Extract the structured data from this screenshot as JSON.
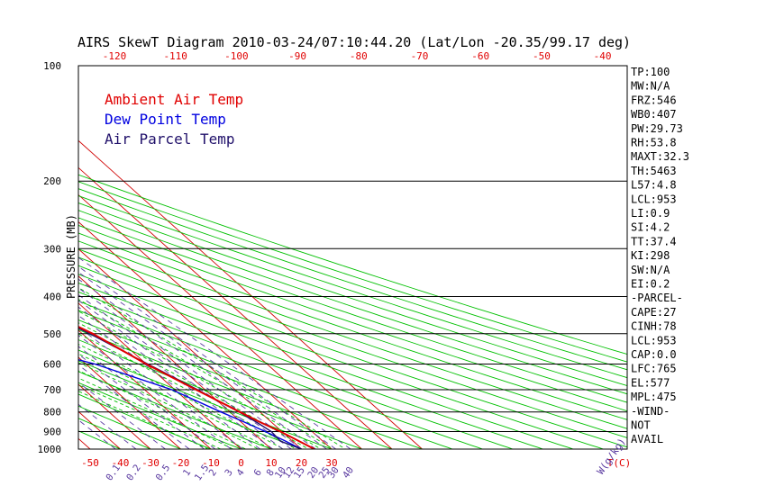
{
  "chart_data": {
    "type": "line",
    "title": "AIRS SkewT Diagram 2010-03-24/07:10:44.20 (Lat/Lon -20.35/99.17 deg)",
    "ylabel": "PRESSURE (MB)",
    "xlabel": "T(C)",
    "mixing_ratio_label": "W(g/kg)",
    "pressure_levels": [
      100,
      200,
      300,
      400,
      500,
      600,
      700,
      800,
      900,
      1000
    ],
    "pressure_tick_labels": [
      "100",
      "200",
      "300",
      "400",
      "500",
      "600",
      "700",
      "800",
      "900",
      "1000"
    ],
    "bottom_temp_ticks": [
      -50,
      -40,
      -30,
      -20,
      -10,
      0,
      10,
      20,
      30
    ],
    "bottom_temp_tick_labels": [
      "-50",
      "-40",
      "-30",
      "-20",
      "-10",
      "0",
      "10",
      "20",
      "30"
    ],
    "top_temp_ticks": [
      -120,
      -110,
      -100,
      -90,
      -80,
      -70,
      -60,
      -50,
      -40
    ],
    "top_temp_tick_labels": [
      "-120",
      "-110",
      "-100",
      "-90",
      "-80",
      "-70",
      "-60",
      "-50",
      "-40"
    ],
    "mixing_ratio_ticks": [
      "0.1",
      "0.2",
      "0.5",
      "1",
      "1.5",
      "2",
      "3",
      "4",
      "6",
      "8",
      "10",
      "12",
      "15",
      "20",
      "25",
      "30",
      "40"
    ],
    "legend": [
      "Ambient Air Temp",
      "Dew Point Temp",
      "Air Parcel Temp"
    ],
    "colors": {
      "ambient": "#e00000",
      "dewpoint": "#0000e0",
      "parcel": "#20106a",
      "isotherm": "#d00000",
      "dry_adiabat": "#00c000",
      "moist_adiabat": "#00c000",
      "mixing_ratio": "#5a3aa0",
      "isobar": "#000000"
    },
    "series": [
      {
        "name": "Ambient Air Temp",
        "pressure": [
          1000,
          950,
          900,
          850,
          800,
          700,
          600,
          500,
          400,
          300,
          250,
          200,
          150,
          100
        ],
        "temp": [
          24.3,
          22.0,
          19.5,
          16.2,
          13.3,
          7.0,
          0.0,
          -6.5,
          -18.5,
          -33.5,
          -42.5,
          -55.0,
          -70.0,
          -78.0
        ]
      },
      {
        "name": "Dew Point Temp",
        "pressure": [
          1000,
          950,
          900,
          850,
          800,
          700,
          600,
          500,
          400,
          300,
          250,
          200,
          150,
          100
        ],
        "temp": [
          20.0,
          17.5,
          14.5,
          11.0,
          7.0,
          -1.0,
          -17.0,
          -45.0,
          -64.0,
          -70.0,
          -63.0,
          -69.0,
          -79.0,
          -82.0
        ]
      },
      {
        "name": "Air Parcel Temp",
        "pressure": [
          1000,
          953,
          900,
          850,
          800,
          700,
          600,
          500,
          400,
          300,
          250,
          200,
          150,
          100
        ],
        "temp": [
          20.0,
          16.0,
          16.5,
          15.0,
          13.0,
          7.5,
          0.5,
          -7.5,
          -19.5,
          -36.0,
          -46.0,
          -58.5,
          -74.0,
          -100.0
        ]
      }
    ]
  },
  "stats": [
    "TP:100",
    "MW:N/A",
    "FRZ:546",
    "WB0:407",
    "PW:29.73",
    "RH:53.8",
    "MAXT:32.3",
    "TH:5463",
    "L57:4.8",
    "LCL:953",
    "LI:0.9",
    "SI:4.2",
    "TT:37.4",
    "KI:298",
    "SW:N/A",
    "EI:0.2",
    "-PARCEL-",
    "CAPE:27",
    "CINH:78",
    "LCL:953",
    "CAP:0.0",
    "LFC:765",
    "EL:577",
    "MPL:475",
    "-WIND-",
    "NOT",
    "AVAIL"
  ]
}
